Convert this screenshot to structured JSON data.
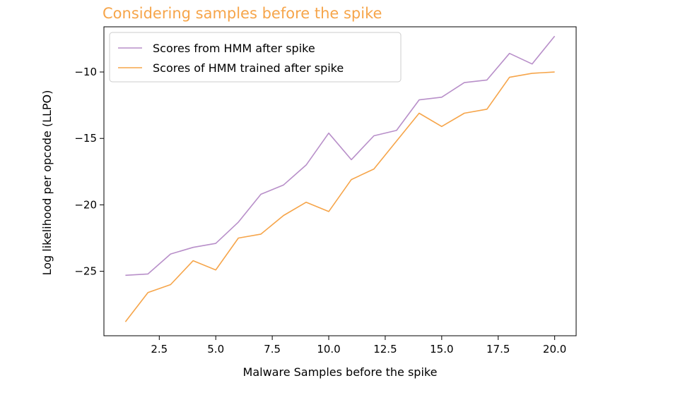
{
  "chart_data": {
    "type": "line",
    "title": "Considering samples before the spike",
    "title_color": "#f6a54a",
    "xlabel": "Malware Samples before the spike",
    "ylabel": "Log likelihood per opcode (LLPO)",
    "xlim": [
      0.05,
      20.95
    ],
    "ylim": [
      -29.85,
      -6.6
    ],
    "xticks": [
      2.5,
      5.0,
      7.5,
      10.0,
      12.5,
      15.0,
      17.5,
      20.0
    ],
    "xtick_labels": [
      "2.5",
      "5.0",
      "7.5",
      "10.0",
      "12.5",
      "15.0",
      "17.5",
      "20.0"
    ],
    "yticks": [
      -25,
      -20,
      -15,
      -10
    ],
    "ytick_labels": [
      "−25",
      "−20",
      "−15",
      "−10"
    ],
    "grid": false,
    "legend_position": "upper-left",
    "x": [
      1,
      2,
      3,
      4,
      5,
      6,
      7,
      8,
      9,
      10,
      11,
      12,
      13,
      14,
      15,
      16,
      17,
      18,
      19,
      20
    ],
    "series": [
      {
        "name": "Scores from HMM after spike",
        "color": "#b88fc9",
        "values": [
          -25.3,
          -25.2,
          -23.7,
          -23.2,
          -22.9,
          -21.3,
          -19.2,
          -18.5,
          -17.0,
          -14.6,
          -16.6,
          -14.8,
          -14.4,
          -12.1,
          -11.9,
          -10.8,
          -10.6,
          -8.6,
          -9.4,
          -7.3
        ]
      },
      {
        "name": "Scores of HMM trained after spike",
        "color": "#f6a54a",
        "values": [
          -28.8,
          -26.6,
          -26.0,
          -24.2,
          -24.9,
          -22.5,
          -22.2,
          -20.8,
          -19.8,
          -20.5,
          -18.1,
          -17.3,
          -15.2,
          -13.1,
          -14.1,
          -13.1,
          -12.8,
          -10.4,
          -10.1,
          -10.0
        ]
      }
    ]
  }
}
